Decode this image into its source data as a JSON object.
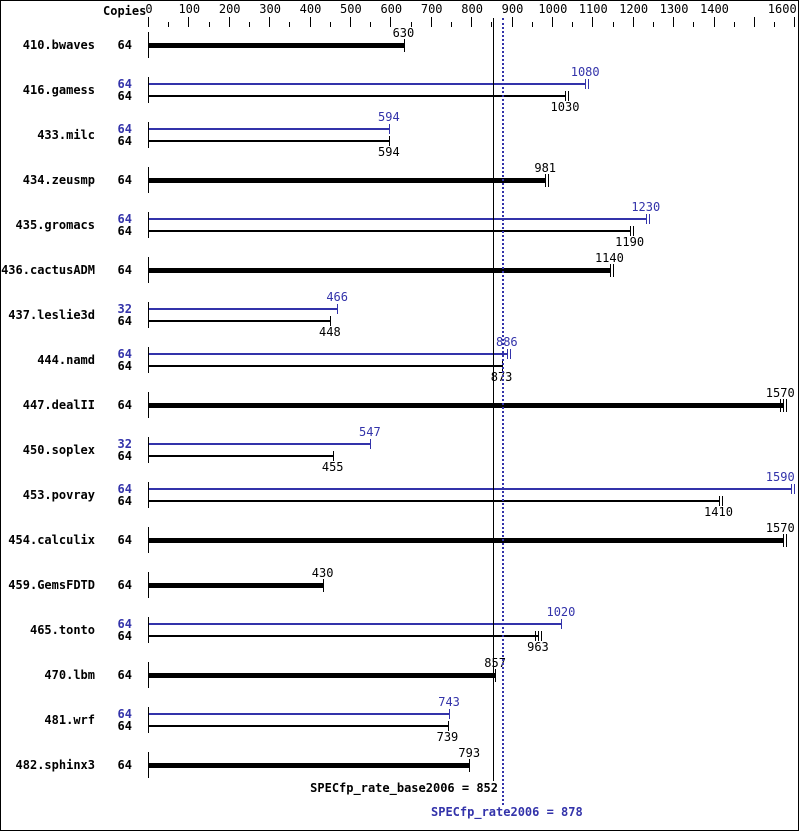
{
  "chart_data": {
    "type": "bar",
    "orientation": "horizontal",
    "copies_header": "Copies",
    "axis": {
      "min": 0,
      "max": 1600,
      "major_tick": 100,
      "minor_tick": 50,
      "tick_labels": [
        "0",
        "100",
        "200",
        "300",
        "400",
        "500",
        "600",
        "700",
        "800",
        "900",
        "1000",
        "1100",
        "1200",
        "1300",
        "1400",
        "1600"
      ]
    },
    "colors": {
      "base": "#000000",
      "peak": "#3333aa",
      "background": "#ffffff"
    },
    "benchmarks": [
      {
        "name": "410.bwaves",
        "bars": [
          {
            "series": "base",
            "copies": "64",
            "value": 630,
            "run_marks": 1
          }
        ]
      },
      {
        "name": "416.gamess",
        "bars": [
          {
            "series": "peak",
            "copies": "64",
            "value": 1080,
            "run_marks": 2
          },
          {
            "series": "base",
            "copies": "64",
            "value": 1030,
            "run_marks": 2
          }
        ]
      },
      {
        "name": "433.milc",
        "bars": [
          {
            "series": "peak",
            "copies": "64",
            "value": 594,
            "run_marks": 1
          },
          {
            "series": "base",
            "copies": "64",
            "value": 594,
            "run_marks": 1
          }
        ]
      },
      {
        "name": "434.zeusmp",
        "bars": [
          {
            "series": "base",
            "copies": "64",
            "value": 981,
            "run_marks": 2
          }
        ]
      },
      {
        "name": "435.gromacs",
        "bars": [
          {
            "series": "peak",
            "copies": "64",
            "value": 1230,
            "run_marks": 2
          },
          {
            "series": "base",
            "copies": "64",
            "value": 1190,
            "run_marks": 2
          }
        ]
      },
      {
        "name": "436.cactusADM",
        "bars": [
          {
            "series": "base",
            "copies": "64",
            "value": 1140,
            "run_marks": 2
          }
        ]
      },
      {
        "name": "437.leslie3d",
        "bars": [
          {
            "series": "peak",
            "copies": "32",
            "value": 466,
            "run_marks": 1
          },
          {
            "series": "base",
            "copies": "64",
            "value": 448,
            "run_marks": 1
          }
        ]
      },
      {
        "name": "444.namd",
        "bars": [
          {
            "series": "peak",
            "copies": "64",
            "value": 886,
            "run_marks": 2
          },
          {
            "series": "base",
            "copies": "64",
            "value": 873,
            "run_marks": 1
          }
        ]
      },
      {
        "name": "447.dealII",
        "bars": [
          {
            "series": "base",
            "copies": "64",
            "value": 1570,
            "run_marks": 3
          }
        ]
      },
      {
        "name": "450.soplex",
        "bars": [
          {
            "series": "peak",
            "copies": "32",
            "value": 547,
            "run_marks": 1
          },
          {
            "series": "base",
            "copies": "64",
            "value": 455,
            "run_marks": 1
          }
        ]
      },
      {
        "name": "453.povray",
        "bars": [
          {
            "series": "peak",
            "copies": "64",
            "value": 1590,
            "run_marks": 2
          },
          {
            "series": "base",
            "copies": "64",
            "value": 1410,
            "run_marks": 2
          }
        ]
      },
      {
        "name": "454.calculix",
        "bars": [
          {
            "series": "base",
            "copies": "64",
            "value": 1570,
            "run_marks": 2
          }
        ]
      },
      {
        "name": "459.GemsFDTD",
        "bars": [
          {
            "series": "base",
            "copies": "64",
            "value": 430,
            "run_marks": 1
          }
        ]
      },
      {
        "name": "465.tonto",
        "bars": [
          {
            "series": "peak",
            "copies": "64",
            "value": 1020,
            "run_marks": 1
          },
          {
            "series": "base",
            "copies": "64",
            "value": 963,
            "run_marks": 3
          }
        ]
      },
      {
        "name": "470.lbm",
        "bars": [
          {
            "series": "base",
            "copies": "64",
            "value": 857,
            "run_marks": 1
          }
        ]
      },
      {
        "name": "481.wrf",
        "bars": [
          {
            "series": "peak",
            "copies": "64",
            "value": 743,
            "run_marks": 1
          },
          {
            "series": "base",
            "copies": "64",
            "value": 739,
            "run_marks": 1
          }
        ]
      },
      {
        "name": "482.sphinx3",
        "bars": [
          {
            "series": "base",
            "copies": "64",
            "value": 793,
            "run_marks": 1
          }
        ]
      }
    ],
    "reference_lines": [
      {
        "series": "base",
        "value": 852,
        "style": "solid",
        "label": "SPECfp_rate_base2006 = 852"
      },
      {
        "series": "peak",
        "value": 878,
        "style": "dotted",
        "label": "SPECfp_rate2006 = 878"
      }
    ]
  }
}
